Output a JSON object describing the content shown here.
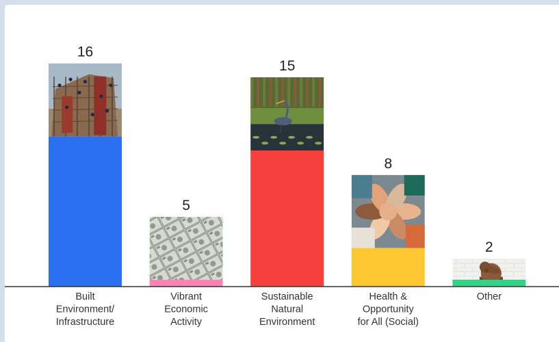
{
  "chart_data": {
    "type": "bar",
    "categories": [
      [
        "Built",
        "Environment/",
        "Infrastructure"
      ],
      [
        "Vibrant",
        "Economic",
        "Activity"
      ],
      [
        "Sustainable",
        "Natural",
        "Environment"
      ],
      [
        "Health &",
        "Opportunity",
        "for All (Social)"
      ],
      [
        "Other"
      ]
    ],
    "values": [
      16,
      5,
      15,
      8,
      2
    ],
    "data_labels": [
      "16",
      "5",
      "15",
      "8",
      "2"
    ],
    "colors": [
      "#2b6ff3",
      "#fc83b4",
      "#f6403c",
      "#fcc730",
      "#2fd486"
    ],
    "photos": [
      "construction-workers-photo",
      "dollar-bills-photo",
      "heron-wetland-photo",
      "stacked-hands-photo",
      "thinker-statue-photo"
    ],
    "title": "",
    "xlabel": "",
    "ylabel": "",
    "grid": false,
    "legend": "none"
  }
}
